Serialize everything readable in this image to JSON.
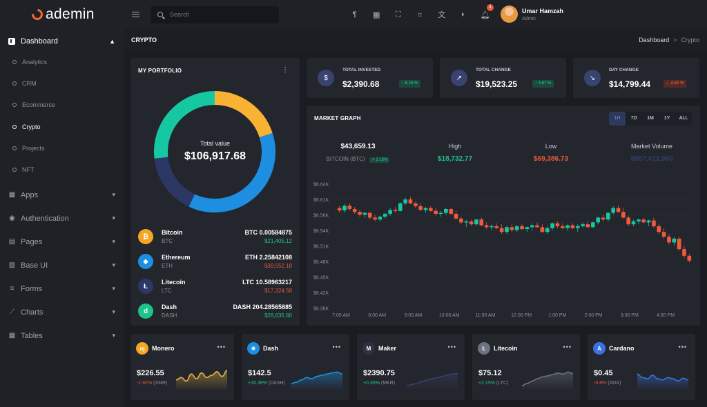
{
  "brand": {
    "name": "ademin"
  },
  "sidebar": {
    "dashboard_label": "Dashboard",
    "sub_items": [
      "Analytics",
      "CRM",
      "Ecommerce",
      "Crypto",
      "Projects",
      "NFT"
    ],
    "active_sub": "Crypto",
    "groups": [
      "Apps",
      "Authentication",
      "Pages",
      "Base UI",
      "Forms",
      "Charts",
      "Tables"
    ]
  },
  "topbar": {
    "search_placeholder": "Search",
    "notification_count": "4",
    "user_name": "Umar Hamzah",
    "user_role": "Admin"
  },
  "page": {
    "title": "CRYPTO",
    "breadcrumb_root": "Dashboard",
    "breadcrumb_sep": ">",
    "breadcrumb_current": "Crypto"
  },
  "portfolio": {
    "title": "MY PORTFOLIO",
    "total_label": "Total value",
    "total_value": "$106,917.68",
    "holdings": [
      {
        "name": "Bitcoin",
        "symbol": "BTC",
        "amount": "BTC 0.00584875",
        "value": "$21,405.12",
        "trend": "up",
        "color": "#f5a623",
        "glyph": "₿"
      },
      {
        "name": "Ethereum",
        "symbol": "ETH",
        "amount": "ETH 2.25842108",
        "value": "$39,552.18",
        "trend": "down",
        "color": "#1d8fe0",
        "glyph": "◆"
      },
      {
        "name": "Litecoin",
        "symbol": "LTC",
        "amount": "LTC 10.58963217",
        "value": "$17,324.58",
        "trend": "down",
        "color": "#2d3766",
        "glyph": "Ł"
      },
      {
        "name": "Dash",
        "symbol": "DASH",
        "amount": "DASH 204.28565885",
        "value": "$28,635.80",
        "trend": "up",
        "color": "#1ec28b",
        "glyph": "d"
      }
    ],
    "donut": [
      {
        "name": "Bitcoin",
        "value": 21405.12,
        "color": "#f9b233"
      },
      {
        "name": "Ethereum",
        "value": 39552.18,
        "color": "#1e8fe0"
      },
      {
        "name": "Litecoin",
        "value": 17324.58,
        "color": "#2d3766"
      },
      {
        "name": "Dash",
        "value": 28635.8,
        "color": "#16c8a1"
      }
    ]
  },
  "stats": [
    {
      "label": "TOTAL INVESTED",
      "value": "$2,390.68",
      "badge": "↑ 6.24 %",
      "trend": "up",
      "icon": "dollar-icon",
      "glyph": "$"
    },
    {
      "label": "TOTAL CHANGE",
      "value": "$19,523.25",
      "badge": "↑ 3.67 %",
      "trend": "up",
      "icon": "trend-up-icon",
      "glyph": "↗"
    },
    {
      "label": "DAY CHANGE",
      "value": "$14,799.44",
      "badge": "↓ -4.80 %",
      "trend": "down",
      "icon": "trend-down-icon",
      "glyph": "↘"
    }
  ],
  "market": {
    "title": "MARKET GRAPH",
    "ranges": [
      "1H",
      "7D",
      "1M",
      "1Y",
      "ALL"
    ],
    "active_range": "1H",
    "price": "$43,659.13",
    "pair": "BITCOIN (BTC)",
    "pair_change": "↗ 2.15%",
    "high_label": "High",
    "high_value": "$18,732.77",
    "low_label": "Low",
    "low_value": "$69,386.73",
    "volume_label": "Market Volume",
    "volume_value": "$987,423,960"
  },
  "chart_data": {
    "type": "candlestick",
    "y_ticks": [
      "$6.64K",
      "$6.61K",
      "$6.58K",
      "$6.54K",
      "$6.51K",
      "$6.48K",
      "$6.45K",
      "$6.42K",
      "$6.38K"
    ],
    "ylim": [
      6380,
      6640
    ],
    "x_ticks": [
      "7:00 AM",
      "8:00 AM",
      "9:00 AM",
      "10:00 AM",
      "11:00 AM",
      "12:00 PM",
      "1:00 PM",
      "2:00 PM",
      "3:00 PM",
      "4:00 PM"
    ],
    "up_color": "#16c8a1",
    "down_color": "#f05a3b",
    "candles": [
      [
        6590,
        6595,
        6580,
        6585
      ],
      [
        6585,
        6598,
        6580,
        6595
      ],
      [
        6595,
        6600,
        6585,
        6588
      ],
      [
        6588,
        6592,
        6578,
        6582
      ],
      [
        6582,
        6586,
        6572,
        6576
      ],
      [
        6576,
        6582,
        6570,
        6580
      ],
      [
        6580,
        6582,
        6566,
        6570
      ],
      [
        6570,
        6575,
        6562,
        6566
      ],
      [
        6566,
        6574,
        6562,
        6572
      ],
      [
        6572,
        6580,
        6568,
        6578
      ],
      [
        6578,
        6590,
        6574,
        6586
      ],
      [
        6586,
        6592,
        6580,
        6584
      ],
      [
        6584,
        6602,
        6582,
        6600
      ],
      [
        6600,
        6612,
        6596,
        6608
      ],
      [
        6608,
        6614,
        6598,
        6600
      ],
      [
        6600,
        6604,
        6590,
        6594
      ],
      [
        6594,
        6600,
        6584,
        6586
      ],
      [
        6586,
        6592,
        6580,
        6590
      ],
      [
        6590,
        6594,
        6582,
        6584
      ],
      [
        6584,
        6590,
        6574,
        6578
      ],
      [
        6578,
        6584,
        6572,
        6580
      ],
      [
        6580,
        6590,
        6576,
        6588
      ],
      [
        6588,
        6590,
        6576,
        6578
      ],
      [
        6578,
        6584,
        6566,
        6568
      ],
      [
        6568,
        6572,
        6556,
        6560
      ],
      [
        6560,
        6566,
        6550,
        6562
      ],
      [
        6562,
        6566,
        6552,
        6556
      ],
      [
        6556,
        6568,
        6552,
        6566
      ],
      [
        6566,
        6570,
        6552,
        6554
      ],
      [
        6554,
        6560,
        6546,
        6550
      ],
      [
        6550,
        6556,
        6544,
        6552
      ],
      [
        6552,
        6558,
        6546,
        6548
      ],
      [
        6548,
        6556,
        6536,
        6540
      ],
      [
        6540,
        6552,
        6536,
        6550
      ],
      [
        6550,
        6556,
        6540,
        6544
      ],
      [
        6544,
        6554,
        6540,
        6552
      ],
      [
        6552,
        6556,
        6544,
        6546
      ],
      [
        6546,
        6552,
        6540,
        6550
      ],
      [
        6550,
        6558,
        6544,
        6554
      ],
      [
        6554,
        6560,
        6548,
        6550
      ],
      [
        6550,
        6556,
        6538,
        6540
      ],
      [
        6540,
        6552,
        6536,
        6548
      ],
      [
        6548,
        6560,
        6544,
        6558
      ],
      [
        6558,
        6562,
        6548,
        6552
      ],
      [
        6552,
        6558,
        6546,
        6548
      ],
      [
        6548,
        6556,
        6542,
        6554
      ],
      [
        6554,
        6558,
        6546,
        6548
      ],
      [
        6548,
        6556,
        6540,
        6552
      ],
      [
        6552,
        6560,
        6548,
        6556
      ],
      [
        6556,
        6562,
        6548,
        6550
      ],
      [
        6550,
        6562,
        6548,
        6560
      ],
      [
        6560,
        6572,
        6556,
        6570
      ],
      [
        6570,
        6576,
        6562,
        6566
      ],
      [
        6566,
        6582,
        6562,
        6580
      ],
      [
        6580,
        6594,
        6576,
        6590
      ],
      [
        6590,
        6596,
        6580,
        6582
      ],
      [
        6582,
        6590,
        6568,
        6570
      ],
      [
        6570,
        6574,
        6552,
        6556
      ],
      [
        6556,
        6566,
        6552,
        6562
      ],
      [
        6562,
        6568,
        6556,
        6566
      ],
      [
        6566,
        6570,
        6558,
        6560
      ],
      [
        6560,
        6566,
        6552,
        6564
      ],
      [
        6564,
        6570,
        6548,
        6552
      ],
      [
        6552,
        6558,
        6536,
        6540
      ],
      [
        6540,
        6548,
        6526,
        6530
      ],
      [
        6530,
        6536,
        6514,
        6518
      ],
      [
        6518,
        6530,
        6512,
        6526
      ],
      [
        6526,
        6530,
        6500,
        6504
      ],
      [
        6504,
        6510,
        6486,
        6490
      ],
      [
        6490,
        6494,
        6476,
        6480
      ]
    ]
  },
  "coins": [
    {
      "name": "Monero",
      "price": "$226.55",
      "change": "-1.92%",
      "sym": "(XMR)",
      "trend": "down",
      "color": "#f5a623",
      "glyph": "ɱ",
      "icon": "monero-icon",
      "spark": [
        0.55,
        0.45,
        0.6,
        0.3,
        0.5,
        0.25,
        0.45,
        0.35,
        0.2,
        0.4,
        0.15
      ],
      "spark_color": "#e6b240"
    },
    {
      "name": "Dash",
      "price": "$142.5",
      "change": "+16.38%",
      "sym": "(DASH)",
      "trend": "up",
      "color": "#1d8fe0",
      "glyph": "✺",
      "icon": "dash-icon",
      "spark": [
        0.7,
        0.65,
        0.55,
        0.45,
        0.5,
        0.4,
        0.35,
        0.3,
        0.25,
        0.22,
        0.3
      ],
      "spark_color": "#1e8fe0"
    },
    {
      "name": "Maker",
      "price": "$2390.75",
      "change": "+0.36%",
      "sym": "(MKR)",
      "trend": "up",
      "color": "#2e3142",
      "glyph": "M",
      "icon": "maker-icon",
      "spark": [
        0.8,
        0.75,
        0.7,
        0.62,
        0.55,
        0.5,
        0.45,
        0.4,
        0.34,
        0.3,
        0.28
      ],
      "spark_color": "#39406b"
    },
    {
      "name": "Litecoin",
      "price": "$75.12",
      "change": "+2.15%",
      "sym": "(LTC)",
      "trend": "up",
      "color": "#6b7280",
      "glyph": "Ł",
      "icon": "litecoin-icon",
      "spark": [
        0.8,
        0.7,
        0.6,
        0.5,
        0.42,
        0.38,
        0.32,
        0.26,
        0.3,
        0.22,
        0.28
      ],
      "spark_color": "#6b7280"
    },
    {
      "name": "Cardano",
      "price": "$0.45",
      "change": "-0.8%",
      "sym": "(ADA)",
      "trend": "down",
      "color": "#3b72e0",
      "glyph": "A",
      "icon": "cardano-icon",
      "spark": [
        0.3,
        0.45,
        0.5,
        0.35,
        0.5,
        0.55,
        0.45,
        0.5,
        0.6,
        0.48,
        0.55
      ],
      "spark_color": "#3b72e0"
    }
  ]
}
